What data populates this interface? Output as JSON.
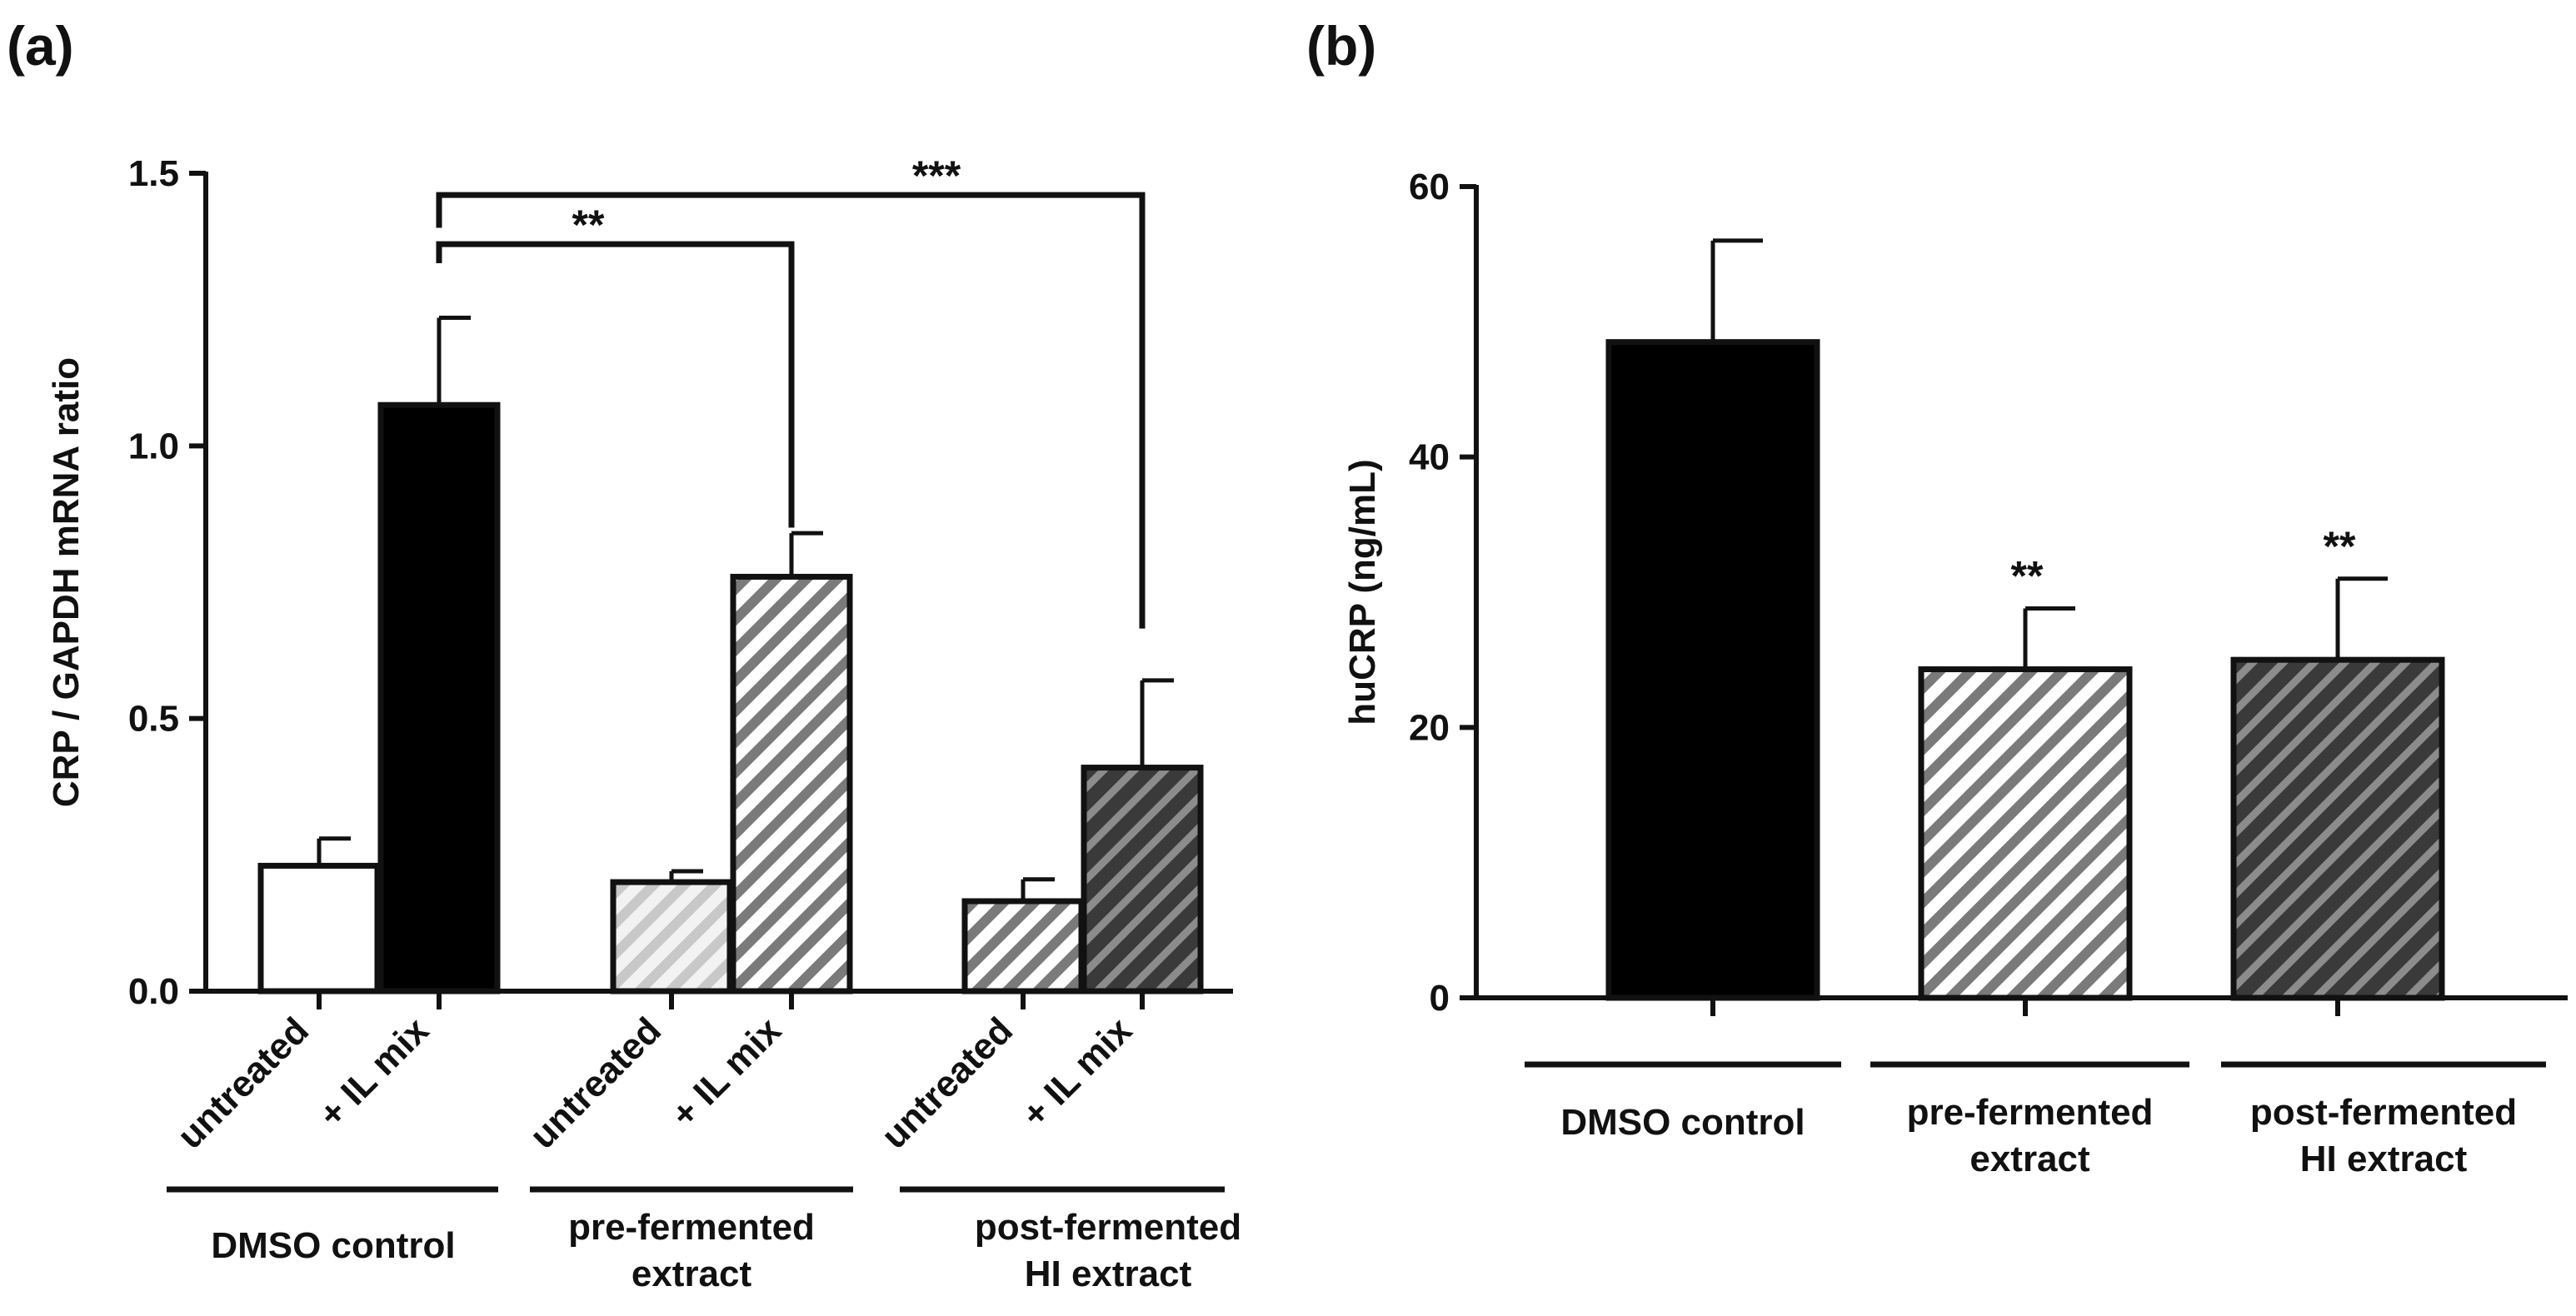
{
  "chart_data": [
    {
      "panel_label": "(a)",
      "type": "bar",
      "ylabel": "CRP / GAPDH mRNA ratio",
      "xlabel": "",
      "ylim": [
        0,
        1.5
      ],
      "yticks": [
        "0.0",
        "0.5",
        "1.0",
        "1.5"
      ],
      "grid": false,
      "groups": [
        {
          "name": "DMSO control",
          "name_lines": [
            "DMSO control"
          ],
          "bars": [
            {
              "label": "untreated",
              "value": 0.23,
              "err": 0.05,
              "fill": "white"
            },
            {
              "label": "+ IL mix",
              "value": 1.075,
              "err": 0.16,
              "fill": "black"
            }
          ]
        },
        {
          "name": "pre-fermented extract",
          "name_lines": [
            "pre-fermented",
            "extract"
          ],
          "bars": [
            {
              "label": "untreated",
              "value": 0.2,
              "err": 0.02,
              "fill": "hatch-light"
            },
            {
              "label": "+ IL mix",
              "value": 0.76,
              "err": 0.08,
              "fill": "hatch-medium"
            }
          ]
        },
        {
          "name": "post-fermented HI extract",
          "name_lines": [
            "post-fermented",
            "HI extract"
          ],
          "bars": [
            {
              "label": "untreated",
              "value": 0.165,
              "err": 0.04,
              "fill": "hatch-medium"
            },
            {
              "label": "+ IL mix",
              "value": 0.41,
              "err": 0.16,
              "fill": "hatch-dark"
            }
          ]
        }
      ],
      "significance": [
        {
          "label": "**",
          "from": "DMSO control + IL mix",
          "to": "pre-fermented extract + IL mix",
          "level": 1.37
        },
        {
          "label": "***",
          "from": "DMSO control + IL mix",
          "to": "post-fermented HI extract + IL mix",
          "level": 1.46
        }
      ]
    },
    {
      "panel_label": "(b)",
      "type": "bar",
      "ylabel": "huCRP (ng/mL)",
      "xlabel": "",
      "ylim": [
        0,
        60
      ],
      "yticks": [
        "0",
        "20",
        "40",
        "60"
      ],
      "grid": false,
      "categories": [
        "DMSO control",
        "pre-fermented extract",
        "post-fermented HI extract"
      ],
      "category_lines": [
        [
          "DMSO control"
        ],
        [
          "pre-fermented",
          "extract"
        ],
        [
          "post-fermented",
          "HI extract"
        ]
      ],
      "bars": [
        {
          "value": 48.5,
          "err": 7.5,
          "fill": "black",
          "annotation": ""
        },
        {
          "value": 24.3,
          "err": 4.5,
          "fill": "hatch-medium",
          "annotation": "**"
        },
        {
          "value": 25.0,
          "err": 6.0,
          "fill": "hatch-dark",
          "annotation": "**"
        }
      ]
    }
  ],
  "colors": {
    "black": "#000000",
    "white": "#ffffff",
    "hatch_light_bg": "#f2f2f2",
    "hatch_light_fg": "#c8c8c8",
    "hatch_medium_bg": "#ffffff",
    "hatch_medium_fg": "#7a7a7a",
    "hatch_dark_bg": "#3a3a3a",
    "hatch_dark_fg": "#8c8c8c",
    "ink": "#111111"
  }
}
